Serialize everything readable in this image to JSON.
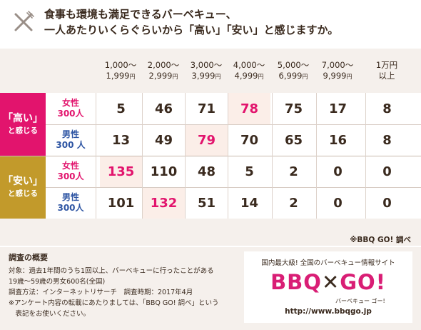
{
  "header": {
    "title_line1": "食事も環境も満足できるバーベキュー、",
    "title_line2": "一人あたりいくらぐらいから「高い」「安い」と感じますか。",
    "icon": "fork-knife-icon"
  },
  "colors": {
    "high_group": "#e2146d",
    "low_group": "#c29a2b",
    "highlight": "#fbeee8",
    "high_text": "#e2146d",
    "male_text": "#2e55a3",
    "header_bg": "#f5f0ec"
  },
  "chart_data": {
    "type": "table",
    "columns": [
      {
        "line1": "1,000～",
        "line2": "1,999",
        "unit": "円"
      },
      {
        "line1": "2,000～",
        "line2": "2,999",
        "unit": "円"
      },
      {
        "line1": "3,000～",
        "line2": "3,999",
        "unit": "円"
      },
      {
        "line1": "4,000～",
        "line2": "4,999",
        "unit": "円"
      },
      {
        "line1": "5,000～",
        "line2": "6,999",
        "unit": "円"
      },
      {
        "line1": "7,000～",
        "line2": "9,999",
        "unit": "円"
      },
      {
        "line1": "1万円",
        "line2": "以上",
        "unit": ""
      }
    ],
    "groups": [
      {
        "label_line1": "「高い」",
        "label_line2": "と感じる",
        "rows": [
          {
            "gender": "女性",
            "count": "300人",
            "values": [
              5,
              46,
              71,
              78,
              75,
              17,
              8
            ],
            "highlight_index": 3
          },
          {
            "gender": "男性",
            "count": "300 人",
            "values": [
              13,
              49,
              79,
              70,
              65,
              16,
              8
            ],
            "highlight_index": 2
          }
        ]
      },
      {
        "label_line1": "「安い」",
        "label_line2": "と感じる",
        "rows": [
          {
            "gender": "女性",
            "count": "300人",
            "values": [
              135,
              110,
              48,
              5,
              2,
              0,
              0
            ],
            "highlight_index": 0
          },
          {
            "gender": "男性",
            "count": "300人",
            "values": [
              101,
              132,
              51,
              14,
              2,
              0,
              0
            ],
            "highlight_index": 1
          }
        ]
      }
    ]
  },
  "source_note": "※BBQ GO! 調べ",
  "survey": {
    "title": "調査の概要",
    "lines": [
      "対象：過去1年間のうち1回以上、バーベキューに行ったことがある",
      "19歳～59歳の男女600名(全国)",
      "調査方法：インターネットリサーチ　調査時期：2017年4月",
      "※アンケート内容の転載にあたりましては、「BBQ GO! 調べ」という",
      "　表記をお使いください。"
    ]
  },
  "logo": {
    "tagline": "国内最大級! 全国のバーベキュー情報サイト",
    "part1": "BBQ",
    "part2": "GO!",
    "separator": "✕",
    "reading": "バーベキュー ゴー!",
    "url": "http://www.bbqgo.jp"
  }
}
